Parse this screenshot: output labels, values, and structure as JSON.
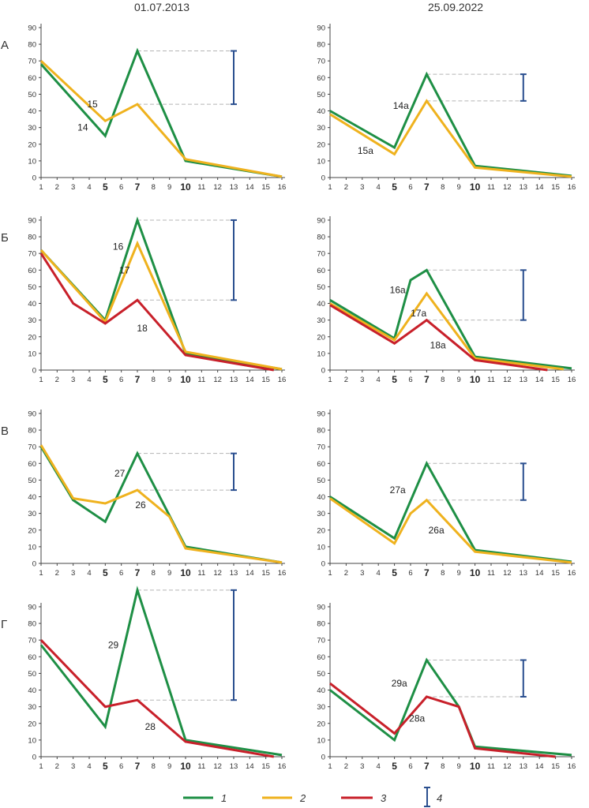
{
  "colors": {
    "series1": "#1e8f45",
    "series2": "#efb21e",
    "series3": "#c8202a",
    "range": "#2a4f8f",
    "axis": "#444444",
    "guide": "#b5b5b5"
  },
  "column_titles": [
    "01.07.2013",
    "25.09.2022"
  ],
  "row_labels": [
    "А",
    "Б",
    "В",
    "Г"
  ],
  "legend": [
    {
      "key": "series1",
      "label": "1"
    },
    {
      "key": "series2",
      "label": "2"
    },
    {
      "key": "series3",
      "label": "3"
    },
    {
      "key": "range",
      "label": "4"
    }
  ],
  "chart_data": [
    {
      "type": "line",
      "id": "A-left",
      "row": "А",
      "column_title": "01.07.2013",
      "xlim": [
        1,
        16
      ],
      "ylim": [
        0,
        90
      ],
      "x_ticks": [
        1,
        2,
        3,
        4,
        5,
        6,
        7,
        8,
        9,
        10,
        11,
        12,
        13,
        14,
        15,
        16
      ],
      "x_bold_ticks": [
        5,
        7,
        10
      ],
      "y_ticks": [
        0,
        10,
        20,
        30,
        40,
        50,
        60,
        70,
        80,
        90
      ],
      "series": [
        {
          "key": "series1",
          "points": [
            [
              1,
              68
            ],
            [
              5,
              25
            ],
            [
              7,
              76
            ],
            [
              10,
              10
            ],
            [
              16,
              0.5
            ]
          ]
        },
        {
          "key": "series2",
          "points": [
            [
              1,
              70
            ],
            [
              5,
              34
            ],
            [
              7,
              44
            ],
            [
              10,
              11
            ],
            [
              16,
              0.5
            ]
          ]
        }
      ],
      "range_bar": {
        "low": 44,
        "high": 76,
        "x": 13
      },
      "annotations": [
        {
          "text": "15",
          "x": 4.2,
          "y": 44
        },
        {
          "text": "14",
          "x": 3.6,
          "y": 30
        }
      ]
    },
    {
      "type": "line",
      "id": "A-right",
      "row": "А",
      "column_title": "25.09.2022",
      "xlim": [
        1,
        16
      ],
      "ylim": [
        0,
        90
      ],
      "x_ticks": [
        1,
        2,
        3,
        4,
        5,
        6,
        7,
        8,
        9,
        10,
        11,
        12,
        13,
        14,
        15,
        16
      ],
      "x_bold_ticks": [
        5,
        7,
        10
      ],
      "y_ticks": [
        0,
        10,
        20,
        30,
        40,
        50,
        60,
        70,
        80,
        90
      ],
      "series": [
        {
          "key": "series1",
          "points": [
            [
              1,
              40
            ],
            [
              5,
              18
            ],
            [
              7,
              62
            ],
            [
              10,
              7
            ],
            [
              16,
              1
            ]
          ]
        },
        {
          "key": "series2",
          "points": [
            [
              1,
              38
            ],
            [
              5,
              14
            ],
            [
              7,
              46
            ],
            [
              10,
              6
            ],
            [
              16,
              0.5
            ]
          ]
        }
      ],
      "range_bar": {
        "low": 46,
        "high": 62,
        "x": 13
      },
      "annotations": [
        {
          "text": "14a",
          "x": 5.4,
          "y": 43
        },
        {
          "text": "15a",
          "x": 3.2,
          "y": 16
        }
      ]
    },
    {
      "type": "line",
      "id": "B-left",
      "row": "Б",
      "column_title": "01.07.2013",
      "xlim": [
        1,
        16
      ],
      "ylim": [
        0,
        90
      ],
      "x_ticks": [
        1,
        2,
        3,
        4,
        5,
        6,
        7,
        8,
        9,
        10,
        11,
        12,
        13,
        14,
        15,
        16
      ],
      "x_bold_ticks": [
        5,
        7,
        10
      ],
      "y_ticks": [
        0,
        10,
        20,
        30,
        40,
        50,
        60,
        70,
        80,
        90
      ],
      "series": [
        {
          "key": "series1",
          "points": [
            [
              1,
              72
            ],
            [
              5,
              30
            ],
            [
              7,
              90
            ],
            [
              10,
              10
            ],
            [
              16,
              0.5
            ]
          ]
        },
        {
          "key": "series2",
          "points": [
            [
              1,
              72
            ],
            [
              5,
              29
            ],
            [
              7,
              76
            ],
            [
              10,
              11
            ],
            [
              16,
              0.5
            ]
          ]
        },
        {
          "key": "series3",
          "points": [
            [
              1,
              70
            ],
            [
              3,
              40
            ],
            [
              5,
              28
            ],
            [
              7,
              42
            ],
            [
              10,
              9
            ],
            [
              15.5,
              0
            ]
          ]
        }
      ],
      "range_bar": {
        "low": 42,
        "high": 90,
        "x": 13
      },
      "annotations": [
        {
          "text": "16",
          "x": 5.8,
          "y": 74
        },
        {
          "text": "17",
          "x": 6.2,
          "y": 60
        },
        {
          "text": "18",
          "x": 7.3,
          "y": 25
        }
      ]
    },
    {
      "type": "line",
      "id": "B-right",
      "row": "Б",
      "column_title": "25.09.2022",
      "xlim": [
        1,
        16
      ],
      "ylim": [
        0,
        90
      ],
      "x_ticks": [
        1,
        2,
        3,
        4,
        5,
        6,
        7,
        8,
        9,
        10,
        11,
        12,
        13,
        14,
        15,
        16
      ],
      "x_bold_ticks": [
        5,
        7,
        10
      ],
      "y_ticks": [
        0,
        10,
        20,
        30,
        40,
        50,
        60,
        70,
        80,
        90
      ],
      "series": [
        {
          "key": "series1",
          "points": [
            [
              1,
              42
            ],
            [
              5,
              19
            ],
            [
              6,
              54
            ],
            [
              7,
              60
            ],
            [
              10,
              8
            ],
            [
              16,
              1
            ]
          ]
        },
        {
          "key": "series2",
          "points": [
            [
              1,
              40
            ],
            [
              5,
              18
            ],
            [
              7,
              46
            ],
            [
              10,
              7
            ],
            [
              15.5,
              0.5
            ]
          ]
        },
        {
          "key": "series3",
          "points": [
            [
              1,
              39
            ],
            [
              5,
              16
            ],
            [
              7,
              30
            ],
            [
              10,
              6
            ],
            [
              14.5,
              0
            ]
          ]
        }
      ],
      "range_bar": {
        "low": 30,
        "high": 60,
        "x": 13
      },
      "annotations": [
        {
          "text": "16a",
          "x": 5.2,
          "y": 48
        },
        {
          "text": "17a",
          "x": 6.5,
          "y": 34
        },
        {
          "text": "18a",
          "x": 7.7,
          "y": 15
        }
      ]
    },
    {
      "type": "line",
      "id": "V-left",
      "row": "В",
      "column_title": "01.07.2013",
      "xlim": [
        1,
        16
      ],
      "ylim": [
        0,
        90
      ],
      "x_ticks": [
        1,
        2,
        3,
        4,
        5,
        6,
        7,
        8,
        9,
        10,
        11,
        12,
        13,
        14,
        15,
        16
      ],
      "x_bold_ticks": [
        5,
        7,
        10
      ],
      "y_ticks": [
        0,
        10,
        20,
        30,
        40,
        50,
        60,
        70,
        80,
        90
      ],
      "series": [
        {
          "key": "series1",
          "points": [
            [
              1,
              70
            ],
            [
              3,
              38
            ],
            [
              5,
              25
            ],
            [
              7,
              66
            ],
            [
              10,
              10
            ],
            [
              16,
              0.5
            ]
          ]
        },
        {
          "key": "series2",
          "points": [
            [
              1,
              71
            ],
            [
              3,
              39
            ],
            [
              5,
              36
            ],
            [
              7,
              44
            ],
            [
              9,
              28
            ],
            [
              10,
              9
            ],
            [
              16,
              0.5
            ]
          ]
        }
      ],
      "range_bar": {
        "low": 44,
        "high": 66,
        "x": 13
      },
      "annotations": [
        {
          "text": "27",
          "x": 5.9,
          "y": 54
        },
        {
          "text": "26",
          "x": 7.2,
          "y": 35
        }
      ]
    },
    {
      "type": "line",
      "id": "V-right",
      "row": "В",
      "column_title": "25.09.2022",
      "xlim": [
        1,
        16
      ],
      "ylim": [
        0,
        90
      ],
      "x_ticks": [
        1,
        2,
        3,
        4,
        5,
        6,
        7,
        8,
        9,
        10,
        11,
        12,
        13,
        14,
        15,
        16
      ],
      "x_bold_ticks": [
        5,
        7,
        10
      ],
      "y_ticks": [
        0,
        10,
        20,
        30,
        40,
        50,
        60,
        70,
        80,
        90
      ],
      "series": [
        {
          "key": "series1",
          "points": [
            [
              1,
              40
            ],
            [
              5,
              15
            ],
            [
              7,
              60
            ],
            [
              10,
              8
            ],
            [
              16,
              1
            ]
          ]
        },
        {
          "key": "series2",
          "points": [
            [
              1,
              39
            ],
            [
              5,
              12
            ],
            [
              6,
              30
            ],
            [
              7,
              38
            ],
            [
              10,
              7
            ],
            [
              16,
              0.5
            ]
          ]
        }
      ],
      "range_bar": {
        "low": 38,
        "high": 60,
        "x": 13
      },
      "annotations": [
        {
          "text": "27a",
          "x": 5.2,
          "y": 44
        },
        {
          "text": "26a",
          "x": 7.6,
          "y": 20
        }
      ]
    },
    {
      "type": "line",
      "id": "G-left",
      "row": "Г",
      "column_title": "01.07.2013",
      "xlim": [
        1,
        16
      ],
      "ylim": [
        0,
        100
      ],
      "x_ticks": [
        1,
        2,
        3,
        4,
        5,
        6,
        7,
        8,
        9,
        10,
        11,
        12,
        13,
        14,
        15,
        16
      ],
      "x_bold_ticks": [
        5,
        7,
        10
      ],
      "y_ticks": [
        0,
        10,
        20,
        30,
        40,
        50,
        60,
        70,
        80,
        90
      ],
      "series": [
        {
          "key": "series1",
          "points": [
            [
              1,
              67
            ],
            [
              5,
              18
            ],
            [
              7,
              100
            ],
            [
              10,
              10
            ],
            [
              16,
              1
            ]
          ]
        },
        {
          "key": "series3",
          "points": [
            [
              1,
              70
            ],
            [
              5,
              30
            ],
            [
              7,
              34
            ],
            [
              10,
              9
            ],
            [
              15.5,
              0
            ]
          ]
        }
      ],
      "range_bar": {
        "low": 34,
        "high": 100,
        "x": 13
      },
      "annotations": [
        {
          "text": "29",
          "x": 5.5,
          "y": 67
        },
        {
          "text": "28",
          "x": 7.8,
          "y": 18
        }
      ]
    },
    {
      "type": "line",
      "id": "G-right",
      "row": "Г",
      "column_title": "25.09.2022",
      "xlim": [
        1,
        16
      ],
      "ylim": [
        0,
        90
      ],
      "x_ticks": [
        1,
        2,
        3,
        4,
        5,
        6,
        7,
        8,
        9,
        10,
        11,
        12,
        13,
        14,
        15,
        16
      ],
      "x_bold_ticks": [
        5,
        7,
        10
      ],
      "y_ticks": [
        0,
        10,
        20,
        30,
        40,
        50,
        60,
        70,
        80,
        90
      ],
      "series": [
        {
          "key": "series1",
          "points": [
            [
              1,
              40
            ],
            [
              5,
              10
            ],
            [
              7,
              58
            ],
            [
              9,
              30
            ],
            [
              10,
              6
            ],
            [
              16,
              1
            ]
          ]
        },
        {
          "key": "series3",
          "points": [
            [
              1,
              44
            ],
            [
              5,
              14
            ],
            [
              7,
              36
            ],
            [
              9,
              30
            ],
            [
              10,
              5
            ],
            [
              15,
              0
            ]
          ]
        }
      ],
      "range_bar": {
        "low": 36,
        "high": 58,
        "x": 13
      },
      "annotations": [
        {
          "text": "29a",
          "x": 5.3,
          "y": 44
        },
        {
          "text": "28a",
          "x": 6.4,
          "y": 23
        }
      ]
    }
  ]
}
